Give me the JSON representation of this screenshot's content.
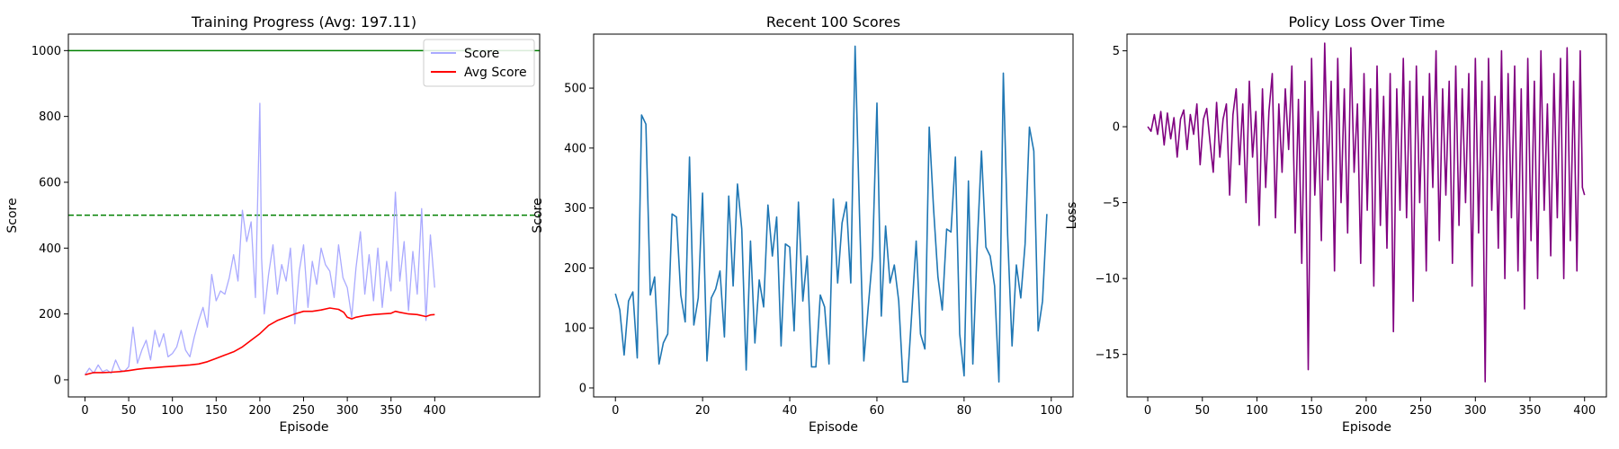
{
  "chart_data": [
    {
      "type": "line",
      "title": "Training Progress (Avg: 197.11)",
      "xlabel": "Episode",
      "ylabel": "Score",
      "xlim": [
        -19,
        520
      ],
      "ylim": [
        -52,
        1050
      ],
      "xticks": [
        0,
        50,
        100,
        150,
        200,
        250,
        300,
        350,
        400
      ],
      "yticks": [
        0,
        200,
        400,
        600,
        800,
        1000
      ],
      "legend_position": "top-right",
      "grid": false,
      "hlines": [
        {
          "y": 1000,
          "style": "solid",
          "color": "#008000"
        },
        {
          "y": 500,
          "style": "dashed",
          "color": "#008000"
        }
      ],
      "series": [
        {
          "name": "Score",
          "color": "#aaaaff",
          "style": "light-line",
          "x": [
            0,
            5,
            10,
            15,
            20,
            25,
            30,
            35,
            40,
            45,
            50,
            55,
            60,
            65,
            70,
            75,
            80,
            85,
            90,
            95,
            100,
            105,
            110,
            115,
            120,
            125,
            130,
            135,
            140,
            145,
            150,
            155,
            160,
            165,
            170,
            175,
            180,
            185,
            190,
            195,
            200,
            202,
            205,
            210,
            215,
            220,
            225,
            230,
            235,
            240,
            245,
            250,
            255,
            260,
            265,
            270,
            275,
            280,
            285,
            290,
            295,
            300,
            305,
            310,
            315,
            320,
            325,
            330,
            335,
            340,
            345,
            350,
            355,
            360,
            365,
            370,
            375,
            380,
            385,
            390,
            395,
            400
          ],
          "values": [
            15,
            35,
            20,
            45,
            25,
            30,
            20,
            60,
            30,
            25,
            40,
            160,
            50,
            90,
            120,
            60,
            150,
            100,
            140,
            70,
            80,
            100,
            150,
            90,
            70,
            130,
            180,
            220,
            160,
            320,
            240,
            270,
            260,
            310,
            380,
            300,
            515,
            420,
            480,
            250,
            840,
            370,
            200,
            320,
            410,
            260,
            350,
            300,
            400,
            170,
            330,
            410,
            220,
            360,
            290,
            400,
            350,
            330,
            250,
            410,
            310,
            280,
            190,
            340,
            450,
            260,
            380,
            240,
            400,
            220,
            360,
            270,
            570,
            300,
            420,
            210,
            390,
            260,
            520,
            180,
            440,
            280
          ]
        },
        {
          "name": "Avg Score",
          "color": "#ff0000",
          "style": "line",
          "x": [
            0,
            10,
            20,
            30,
            40,
            50,
            60,
            70,
            80,
            90,
            100,
            110,
            120,
            130,
            140,
            150,
            160,
            170,
            180,
            190,
            200,
            210,
            220,
            230,
            240,
            250,
            260,
            270,
            280,
            290,
            296,
            300,
            305,
            310,
            320,
            330,
            340,
            350,
            355,
            360,
            370,
            380,
            390,
            395,
            400
          ],
          "values": [
            15,
            22,
            22,
            23,
            25,
            28,
            32,
            35,
            37,
            39,
            41,
            43,
            45,
            48,
            55,
            65,
            75,
            85,
            100,
            120,
            140,
            165,
            180,
            190,
            200,
            208,
            208,
            212,
            218,
            214,
            205,
            190,
            185,
            190,
            195,
            198,
            200,
            202,
            208,
            205,
            200,
            198,
            192,
            197,
            198
          ]
        }
      ]
    },
    {
      "type": "line",
      "title": "Recent 100 Scores",
      "xlabel": "Episode",
      "ylabel": "Score",
      "xlim": [
        -5,
        105
      ],
      "ylim": [
        -15,
        590
      ],
      "xticks": [
        0,
        20,
        40,
        60,
        80,
        100
      ],
      "yticks": [
        0,
        100,
        200,
        300,
        400,
        500
      ],
      "grid": false,
      "series": [
        {
          "color": "#1f77b4",
          "x": [
            0,
            1,
            2,
            3,
            4,
            5,
            6,
            7,
            8,
            9,
            10,
            11,
            12,
            13,
            14,
            15,
            16,
            17,
            18,
            19,
            20,
            21,
            22,
            23,
            24,
            25,
            26,
            27,
            28,
            29,
            30,
            31,
            32,
            33,
            34,
            35,
            36,
            37,
            38,
            39,
            40,
            41,
            42,
            43,
            44,
            45,
            46,
            47,
            48,
            49,
            50,
            51,
            52,
            53,
            54,
            55,
            56,
            57,
            58,
            59,
            60,
            61,
            62,
            63,
            64,
            65,
            66,
            67,
            68,
            69,
            70,
            71,
            72,
            73,
            74,
            75,
            76,
            77,
            78,
            79,
            80,
            81,
            82,
            83,
            84,
            85,
            86,
            87,
            88,
            89,
            90,
            91,
            92,
            93,
            94,
            95,
            96,
            97,
            98,
            99
          ],
          "values": [
            157,
            130,
            55,
            145,
            160,
            50,
            455,
            440,
            155,
            185,
            40,
            75,
            90,
            290,
            285,
            155,
            110,
            385,
            105,
            150,
            325,
            45,
            150,
            165,
            195,
            85,
            320,
            170,
            340,
            265,
            30,
            245,
            75,
            180,
            135,
            305,
            220,
            285,
            70,
            240,
            235,
            95,
            310,
            145,
            220,
            35,
            35,
            155,
            135,
            40,
            315,
            175,
            275,
            310,
            175,
            570,
            290,
            45,
            135,
            220,
            475,
            120,
            270,
            175,
            205,
            145,
            10,
            10,
            125,
            245,
            90,
            65,
            435,
            300,
            185,
            130,
            265,
            260,
            385,
            90,
            20,
            345,
            40,
            235,
            395,
            235,
            220,
            170,
            10,
            525,
            255,
            70,
            205,
            150,
            240,
            435,
            395,
            95,
            145,
            290
          ]
        }
      ]
    },
    {
      "type": "line",
      "title": "Policy Loss Over Time",
      "xlabel": "Episode",
      "ylabel": "Loss",
      "xlim": [
        -19,
        420
      ],
      "ylim": [
        -17.8,
        6.1
      ],
      "xticks": [
        0,
        50,
        100,
        150,
        200,
        250,
        300,
        350,
        400
      ],
      "yticks": [
        5,
        0,
        -5,
        -10,
        -15
      ],
      "grid": false,
      "series": [
        {
          "color": "#800080",
          "x": [
            0,
            3,
            6,
            9,
            12,
            15,
            18,
            21,
            24,
            27,
            30,
            33,
            36,
            39,
            42,
            45,
            48,
            51,
            54,
            57,
            60,
            63,
            66,
            69,
            72,
            75,
            78,
            81,
            84,
            87,
            90,
            93,
            96,
            99,
            102,
            105,
            108,
            111,
            114,
            117,
            120,
            123,
            126,
            129,
            132,
            135,
            138,
            141,
            144,
            147,
            150,
            153,
            156,
            159,
            162,
            165,
            168,
            171,
            174,
            177,
            180,
            183,
            186,
            189,
            192,
            195,
            198,
            201,
            204,
            207,
            210,
            213,
            216,
            219,
            222,
            225,
            228,
            231,
            234,
            237,
            240,
            243,
            246,
            249,
            252,
            255,
            258,
            261,
            264,
            267,
            270,
            273,
            276,
            279,
            282,
            285,
            288,
            291,
            294,
            297,
            300,
            303,
            306,
            309,
            312,
            315,
            318,
            321,
            324,
            327,
            330,
            333,
            336,
            339,
            342,
            345,
            348,
            351,
            354,
            357,
            360,
            363,
            366,
            369,
            372,
            375,
            378,
            381,
            384,
            387,
            390,
            393,
            396,
            398,
            400
          ],
          "values": [
            0,
            -0.3,
            0.8,
            -0.5,
            1.0,
            -1.2,
            0.9,
            -0.8,
            0.6,
            -2.0,
            0.5,
            1.1,
            -1.5,
            0.8,
            -0.5,
            1.5,
            -2.5,
            0.5,
            1.2,
            -1.0,
            -3.0,
            1.6,
            -2.0,
            0.5,
            1.5,
            -4.5,
            0.8,
            2.5,
            -2.5,
            1.5,
            -5.0,
            3.0,
            -2.0,
            1.0,
            -6.5,
            2.5,
            -4.0,
            1.0,
            3.5,
            -6.0,
            1.5,
            -3.0,
            2.5,
            -1.5,
            4.0,
            -7.0,
            1.8,
            -9.0,
            3.0,
            -16.0,
            4.5,
            -4.5,
            1.0,
            -7.5,
            5.5,
            -3.5,
            3.0,
            -9.5,
            4.5,
            -5.0,
            2.5,
            -7.0,
            5.2,
            -3.0,
            1.5,
            -9.0,
            3.5,
            -5.5,
            2.5,
            -10.5,
            4.0,
            -6.5,
            2.0,
            -8.0,
            3.5,
            -13.5,
            2.5,
            -5.5,
            4.5,
            -6.0,
            3.0,
            -11.5,
            4.0,
            -5.0,
            2.0,
            -9.5,
            3.5,
            -4.0,
            5.0,
            -7.5,
            2.5,
            -4.5,
            3.0,
            -9.0,
            4.0,
            -6.5,
            2.5,
            -5.0,
            3.5,
            -10.5,
            4.5,
            -7.0,
            3.0,
            -16.8,
            4.5,
            -5.5,
            2.0,
            -8.0,
            5.0,
            -10.0,
            3.5,
            -6.0,
            4.0,
            -9.5,
            2.5,
            -12.0,
            4.5,
            -7.5,
            3.0,
            -10.0,
            5.0,
            -5.5,
            1.5,
            -8.5,
            3.5,
            -6.0,
            4.5,
            -10.0,
            5.2,
            -7.5,
            3.0,
            -9.5,
            5.0,
            -4.0,
            -4.5
          ]
        }
      ]
    }
  ]
}
